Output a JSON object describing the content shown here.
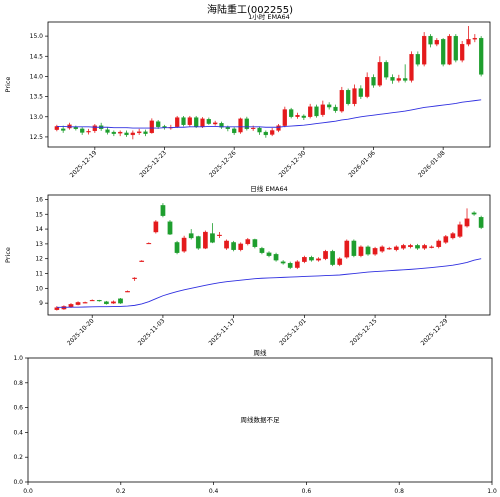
{
  "figure": {
    "title": "海陆重工(002255)"
  },
  "chart_data": [
    {
      "type": "candlestick",
      "title": "1小时 EMA64",
      "xlabel": "",
      "ylabel": "Price",
      "ylim": [
        12.25,
        15.35
      ],
      "y_ticks": [
        "12.5",
        "13.0",
        "13.5",
        "14.0",
        "14.5",
        "15.0"
      ],
      "x_ticks": [
        "2025-12-19",
        "2025-12-23",
        "2025-12-26",
        "2025-12-30",
        "2026-01-06",
        "2026-01-08"
      ],
      "colors": {
        "up": "#e41a1c",
        "down": "#1e9e2e",
        "ema": "#3030e0"
      },
      "candles": [
        [
          12.68,
          12.76,
          12.8,
          12.64
        ],
        [
          12.7,
          12.66,
          12.78,
          12.6
        ],
        [
          12.72,
          12.8,
          12.85,
          12.68
        ],
        [
          12.74,
          12.7,
          12.78,
          12.66
        ],
        [
          12.7,
          12.61,
          12.74,
          12.55
        ],
        [
          12.62,
          12.64,
          12.7,
          12.56
        ],
        [
          12.65,
          12.78,
          12.82,
          12.6
        ],
        [
          12.78,
          12.7,
          12.85,
          12.65
        ],
        [
          12.68,
          12.61,
          12.74,
          12.56
        ],
        [
          12.62,
          12.58,
          12.66,
          12.52
        ],
        [
          12.59,
          12.62,
          12.66,
          12.52
        ],
        [
          12.6,
          12.55,
          12.66,
          12.5
        ],
        [
          12.55,
          12.6,
          12.66,
          12.44
        ],
        [
          12.6,
          12.63,
          12.7,
          12.55
        ],
        [
          12.63,
          12.58,
          12.68,
          12.52
        ],
        [
          12.6,
          12.9,
          12.96,
          12.58
        ],
        [
          12.88,
          12.75,
          12.92,
          12.7
        ],
        [
          12.76,
          12.73,
          12.8,
          12.68
        ],
        [
          12.74,
          12.74,
          12.8,
          12.68
        ],
        [
          12.75,
          12.98,
          13.02,
          12.72
        ],
        [
          12.98,
          12.8,
          13.02,
          12.76
        ],
        [
          12.8,
          12.98,
          13.02,
          12.76
        ],
        [
          12.98,
          12.75,
          13.02,
          12.72
        ],
        [
          12.76,
          12.95,
          12.99,
          12.72
        ],
        [
          12.94,
          12.83,
          12.98,
          12.8
        ],
        [
          12.82,
          12.85,
          12.9,
          12.78
        ],
        [
          12.84,
          12.74,
          12.88,
          12.7
        ],
        [
          12.74,
          12.7,
          12.78,
          12.64
        ],
        [
          12.7,
          12.6,
          12.74,
          12.55
        ],
        [
          12.62,
          12.95,
          12.98,
          12.58
        ],
        [
          12.95,
          12.7,
          13.0,
          12.66
        ],
        [
          12.7,
          12.72,
          12.78,
          12.65
        ],
        [
          12.72,
          12.62,
          12.76,
          12.55
        ],
        [
          12.62,
          12.55,
          12.66,
          12.48
        ],
        [
          12.56,
          12.66,
          12.72,
          12.52
        ],
        [
          12.66,
          12.78,
          12.82,
          12.62
        ],
        [
          12.78,
          13.18,
          13.25,
          12.74
        ],
        [
          13.18,
          13.0,
          13.22,
          12.96
        ],
        [
          13.0,
          13.04,
          13.1,
          12.95
        ],
        [
          13.02,
          12.98,
          13.06,
          12.92
        ],
        [
          13.0,
          13.25,
          13.32,
          12.96
        ],
        [
          13.25,
          13.02,
          13.3,
          12.98
        ],
        [
          13.05,
          13.3,
          13.4,
          13.0
        ],
        [
          13.3,
          13.24,
          13.36,
          13.18
        ],
        [
          13.24,
          13.15,
          13.3,
          13.1
        ],
        [
          13.14,
          13.66,
          13.74,
          13.1
        ],
        [
          13.66,
          13.32,
          13.7,
          13.28
        ],
        [
          13.32,
          13.7,
          13.8,
          13.26
        ],
        [
          13.7,
          13.5,
          13.78,
          13.44
        ],
        [
          13.5,
          13.98,
          14.1,
          13.46
        ],
        [
          13.98,
          13.78,
          14.05,
          13.72
        ],
        [
          13.78,
          14.35,
          14.5,
          13.74
        ],
        [
          14.35,
          13.98,
          14.4,
          13.92
        ],
        [
          13.98,
          13.9,
          14.05,
          13.82
        ],
        [
          13.9,
          13.95,
          14.04,
          13.85
        ],
        [
          13.95,
          13.9,
          14.3,
          13.85
        ],
        [
          13.9,
          14.55,
          14.62,
          13.85
        ],
        [
          14.55,
          14.3,
          14.62,
          14.25
        ],
        [
          14.3,
          15.0,
          15.1,
          14.25
        ],
        [
          15.0,
          14.8,
          15.05,
          14.72
        ],
        [
          14.8,
          14.9,
          14.95,
          14.75
        ],
        [
          14.92,
          14.3,
          14.95,
          14.25
        ],
        [
          14.3,
          15.0,
          15.05,
          14.28
        ],
        [
          15.0,
          14.4,
          15.05,
          14.35
        ],
        [
          14.4,
          14.8,
          14.88,
          14.35
        ],
        [
          14.8,
          14.92,
          15.25,
          14.75
        ],
        [
          14.92,
          14.95,
          15.05,
          14.85
        ],
        [
          14.95,
          14.05,
          15.0,
          14.0
        ]
      ],
      "ema": [
        12.76,
        12.76,
        12.75,
        12.75,
        12.75,
        12.75,
        12.74,
        12.74,
        12.74,
        12.73,
        12.73,
        12.73,
        12.72,
        12.72,
        12.72,
        12.72,
        12.72,
        12.73,
        12.73,
        12.74,
        12.74,
        12.75,
        12.75,
        12.75,
        12.76,
        12.76,
        12.75,
        12.75,
        12.75,
        12.75,
        12.75,
        12.75,
        12.75,
        12.74,
        12.74,
        12.74,
        12.76,
        12.77,
        12.78,
        12.79,
        12.81,
        12.83,
        12.85,
        12.87,
        12.89,
        12.92,
        12.94,
        12.97,
        13.0,
        13.02,
        13.04,
        13.06,
        13.08,
        13.1,
        13.12,
        13.14,
        13.17,
        13.2,
        13.23,
        13.25,
        13.27,
        13.29,
        13.31,
        13.33,
        13.36,
        13.38,
        13.4,
        13.42
      ]
    },
    {
      "type": "candlestick",
      "title": "日线 EMA64",
      "xlabel": "",
      "ylabel": "Price",
      "ylim": [
        8.2,
        16.3
      ],
      "y_ticks": [
        "9",
        "10",
        "11",
        "12",
        "13",
        "14",
        "15",
        "16"
      ],
      "x_ticks": [
        "2025-10-20",
        "2025-11-03",
        "2025-11-17",
        "2025-12-01",
        "2025-12-15",
        "2025-12-29"
      ],
      "colors": {
        "up": "#e41a1c",
        "down": "#1e9e2e",
        "ema": "#3030e0"
      },
      "candles": [
        [
          8.55,
          8.7,
          8.8,
          8.5
        ],
        [
          8.6,
          8.78,
          8.85,
          8.55
        ],
        [
          8.72,
          8.92,
          9.0,
          8.68
        ],
        [
          8.9,
          9.05,
          9.12,
          8.85
        ],
        [
          9.05,
          9.05,
          9.1,
          9.0
        ],
        [
          9.2,
          9.2,
          9.25,
          9.15
        ],
        [
          9.2,
          9.15,
          9.22,
          9.1
        ],
        [
          9.1,
          8.95,
          9.15,
          8.9
        ],
        [
          9.0,
          9.1,
          9.18,
          8.95
        ],
        [
          9.3,
          9.0,
          9.35,
          8.95
        ],
        [
          9.8,
          9.8,
          9.85,
          9.78
        ],
        [
          10.7,
          10.7,
          10.75,
          10.5
        ],
        [
          11.85,
          11.85,
          11.9,
          11.8
        ],
        [
          13.05,
          13.05,
          13.1,
          13.0
        ],
        [
          13.8,
          14.5,
          14.6,
          13.7
        ],
        [
          15.6,
          14.9,
          15.75,
          14.8
        ],
        [
          14.5,
          13.65,
          14.6,
          13.6
        ],
        [
          13.1,
          12.4,
          13.2,
          12.3
        ],
        [
          12.5,
          13.4,
          13.55,
          12.4
        ],
        [
          13.7,
          13.4,
          14.0,
          13.3
        ],
        [
          13.5,
          12.7,
          13.55,
          12.6
        ],
        [
          12.7,
          13.8,
          13.9,
          12.65
        ],
        [
          13.7,
          13.1,
          14.4,
          13.05
        ],
        [
          13.6,
          13.6,
          13.8,
          13.4
        ],
        [
          12.7,
          13.2,
          13.3,
          12.6
        ],
        [
          13.1,
          12.6,
          13.2,
          12.5
        ],
        [
          12.6,
          13.0,
          13.1,
          12.5
        ],
        [
          13.0,
          13.3,
          13.4,
          12.9
        ],
        [
          13.3,
          12.8,
          13.35,
          12.7
        ],
        [
          12.7,
          12.4,
          12.8,
          12.3
        ],
        [
          12.4,
          12.2,
          12.5,
          12.1
        ],
        [
          12.3,
          11.9,
          12.4,
          11.8
        ],
        [
          11.8,
          11.7,
          11.9,
          11.6
        ],
        [
          11.7,
          11.4,
          11.8,
          11.3
        ],
        [
          11.4,
          11.8,
          11.9,
          11.3
        ],
        [
          11.8,
          12.1,
          12.2,
          11.7
        ],
        [
          12.1,
          11.9,
          12.2,
          11.8
        ],
        [
          11.9,
          12.0,
          12.1,
          11.8
        ],
        [
          12.0,
          12.5,
          12.6,
          11.9
        ],
        [
          12.5,
          11.6,
          12.6,
          11.5
        ],
        [
          11.6,
          12.0,
          12.1,
          11.5
        ],
        [
          12.1,
          13.2,
          13.3,
          12.0
        ],
        [
          13.2,
          12.2,
          13.3,
          12.1
        ],
        [
          12.2,
          12.8,
          12.9,
          12.1
        ],
        [
          12.8,
          12.3,
          12.9,
          12.2
        ],
        [
          12.3,
          12.7,
          12.8,
          12.2
        ],
        [
          12.5,
          12.8,
          12.9,
          12.4
        ],
        [
          12.7,
          12.7,
          12.8,
          12.6
        ],
        [
          12.6,
          12.8,
          12.9,
          12.5
        ],
        [
          12.7,
          12.9,
          13.0,
          12.6
        ],
        [
          12.8,
          12.9,
          13.0,
          12.7
        ],
        [
          12.9,
          12.7,
          13.0,
          12.6
        ],
        [
          12.7,
          12.9,
          13.0,
          12.6
        ],
        [
          12.8,
          12.8,
          12.9,
          12.7
        ],
        [
          12.8,
          13.2,
          13.3,
          12.7
        ],
        [
          13.1,
          13.5,
          13.6,
          13.0
        ],
        [
          13.4,
          13.7,
          13.8,
          13.3
        ],
        [
          13.5,
          14.3,
          14.5,
          13.4
        ],
        [
          14.2,
          14.7,
          15.4,
          14.1
        ],
        [
          15.1,
          15.0,
          15.2,
          14.9
        ],
        [
          14.8,
          14.1,
          14.9,
          14.0
        ]
      ],
      "ema": [
        8.72,
        8.72,
        8.73,
        8.73,
        8.74,
        8.75,
        8.76,
        8.76,
        8.77,
        8.78,
        8.8,
        8.85,
        8.95,
        9.1,
        9.3,
        9.5,
        9.65,
        9.78,
        9.9,
        10.0,
        10.1,
        10.2,
        10.3,
        10.38,
        10.45,
        10.5,
        10.55,
        10.6,
        10.65,
        10.68,
        10.7,
        10.72,
        10.74,
        10.76,
        10.78,
        10.8,
        10.82,
        10.84,
        10.86,
        10.88,
        10.9,
        10.95,
        11.0,
        11.05,
        11.1,
        11.13,
        11.16,
        11.19,
        11.22,
        11.25,
        11.28,
        11.32,
        11.36,
        11.4,
        11.45,
        11.5,
        11.56,
        11.65,
        11.75,
        11.9,
        12.0
      ]
    },
    {
      "type": "placeholder",
      "title": "周线",
      "note": "周线数据不足",
      "x_ticks": [
        "0.0",
        "0.2",
        "0.4",
        "0.6",
        "0.8",
        "1.0"
      ],
      "y_ticks": [
        "0.0",
        "0.2",
        "0.4",
        "0.6",
        "0.8",
        "1.0"
      ],
      "xlim": [
        0,
        1
      ],
      "ylim": [
        0,
        1
      ]
    }
  ]
}
